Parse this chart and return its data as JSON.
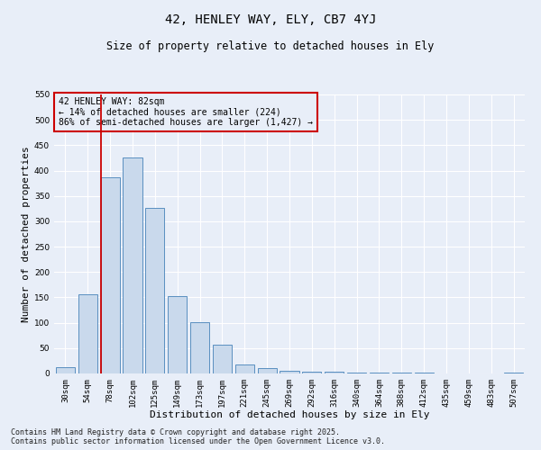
{
  "title": "42, HENLEY WAY, ELY, CB7 4YJ",
  "subtitle": "Size of property relative to detached houses in Ely",
  "xlabel": "Distribution of detached houses by size in Ely",
  "ylabel": "Number of detached properties",
  "bar_color": "#c9d9ec",
  "bar_edge_color": "#5a8fc0",
  "background_color": "#e8eef8",
  "grid_color": "#ffffff",
  "annotation_box_color": "#cc0000",
  "vline_color": "#cc0000",
  "categories": [
    "30sqm",
    "54sqm",
    "78sqm",
    "102sqm",
    "125sqm",
    "149sqm",
    "173sqm",
    "197sqm",
    "221sqm",
    "245sqm",
    "269sqm",
    "292sqm",
    "316sqm",
    "340sqm",
    "364sqm",
    "388sqm",
    "412sqm",
    "435sqm",
    "459sqm",
    "483sqm",
    "507sqm"
  ],
  "values": [
    12,
    157,
    386,
    425,
    327,
    153,
    102,
    56,
    17,
    10,
    5,
    4,
    3,
    2,
    1,
    1,
    1,
    0,
    0,
    0,
    2
  ],
  "ylim": [
    0,
    550
  ],
  "yticks": [
    0,
    50,
    100,
    150,
    200,
    250,
    300,
    350,
    400,
    450,
    500,
    550
  ],
  "vline_x": 1.575,
  "annotation_text": "42 HENLEY WAY: 82sqm\n← 14% of detached houses are smaller (224)\n86% of semi-detached houses are larger (1,427) →",
  "footer_text": "Contains HM Land Registry data © Crown copyright and database right 2025.\nContains public sector information licensed under the Open Government Licence v3.0.",
  "title_fontsize": 10,
  "subtitle_fontsize": 8.5,
  "tick_fontsize": 6.5,
  "axis_label_fontsize": 8,
  "annotation_fontsize": 7,
  "footer_fontsize": 6
}
